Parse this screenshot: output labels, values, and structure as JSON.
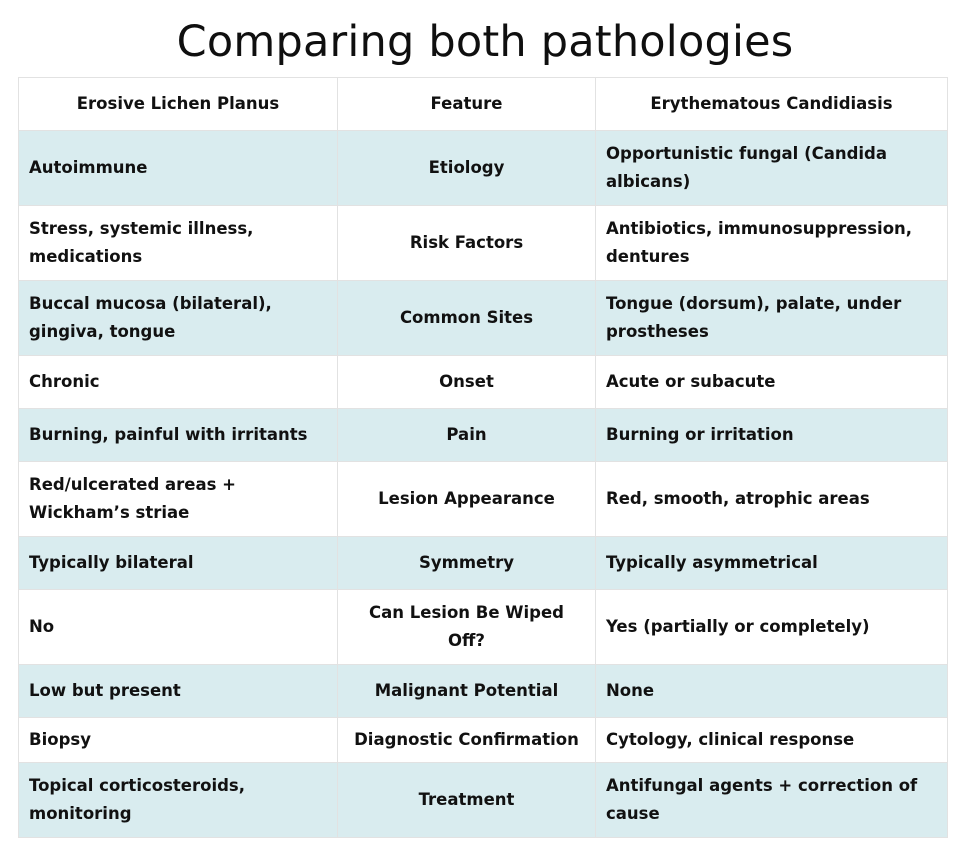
{
  "title": "Comparing both pathologies",
  "table": {
    "headers": [
      "Erosive Lichen Planus",
      "Feature",
      "Erythematous Candidiasis"
    ],
    "rows": [
      {
        "elp": "Autoimmune",
        "feature": "Etiology",
        "ec": "Opportunistic fungal (Candida albicans)"
      },
      {
        "elp": "Stress, systemic illness, medications",
        "feature": "Risk Factors",
        "ec": "Antibiotics, immunosuppression, dentures"
      },
      {
        "elp": "Buccal mucosa (bilateral), gingiva, tongue",
        "feature": "Common Sites",
        "ec": "Tongue (dorsum), palate, under prostheses"
      },
      {
        "elp": "Chronic",
        "feature": "Onset",
        "ec": "Acute or subacute"
      },
      {
        "elp": "Burning, painful with irritants",
        "feature": "Pain",
        "ec": "Burning or irritation"
      },
      {
        "elp": "Red/ulcerated areas + Wickham’s striae",
        "feature": "Lesion Appearance",
        "ec": "Red, smooth, atrophic areas"
      },
      {
        "elp": "Typically bilateral",
        "feature": "Symmetry",
        "ec": "Typically asymmetrical"
      },
      {
        "elp": "No",
        "feature": "Can Lesion Be Wiped Off?",
        "ec": "Yes (partially or completely)"
      },
      {
        "elp": "Low but present",
        "feature": "Malignant Potential",
        "ec": "None"
      },
      {
        "elp": "Biopsy",
        "feature": "Diagnostic Confirmation",
        "ec": "Cytology, clinical response"
      },
      {
        "elp": "Topical corticosteroids, monitoring",
        "feature": "Treatment",
        "ec": "Antifungal agents + correction of cause"
      }
    ]
  },
  "colors": {
    "shaded_row": "#d9ecef",
    "plain_row": "#ffffff",
    "border": "#e2e2e2",
    "text": "#111111"
  }
}
